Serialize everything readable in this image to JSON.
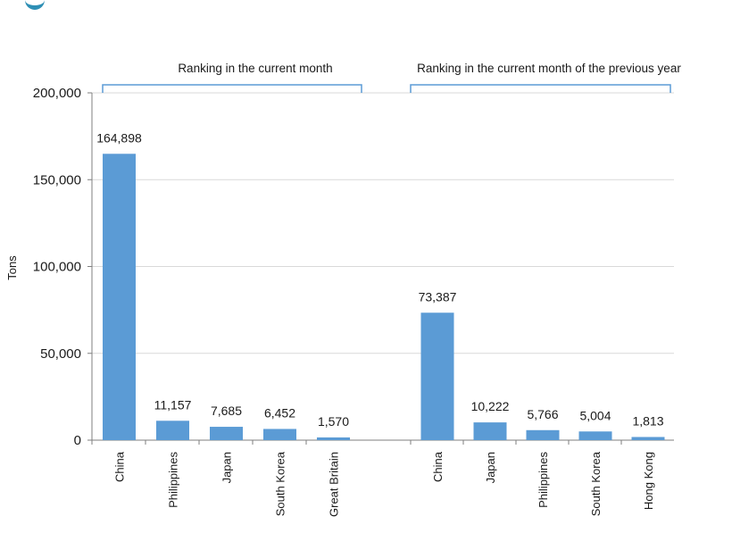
{
  "chart_data": {
    "type": "bar",
    "ylabel": "Tons",
    "ylim": [
      0,
      200000
    ],
    "yticks": [
      "200,000",
      "150,000",
      "100,000",
      "50,000",
      "0"
    ],
    "grid": true,
    "colors": {
      "bar": "#5b9bd5",
      "bracket": "#5b9bd5",
      "grid": "#d9d9d9",
      "axis": "#7f7f7f"
    },
    "groups": [
      {
        "name": "Ranking in the current month",
        "categories": [
          "China",
          "Philippines",
          "Japan",
          "South Korea",
          "Great Britain"
        ],
        "values": [
          164898,
          11157,
          7685,
          6452,
          1570
        ],
        "labels": [
          "164,898",
          "11,157",
          "7,685",
          "6,452",
          "1,570"
        ]
      },
      {
        "name": "Ranking in the current month of the previous year",
        "categories": [
          "China",
          "Japan",
          "Philippines",
          "South Korea",
          "Hong Kong"
        ],
        "values": [
          73387,
          10222,
          5766,
          5004,
          1813
        ],
        "labels": [
          "73,387",
          "10,222",
          "5,766",
          "5,004",
          "1,813"
        ]
      }
    ]
  }
}
